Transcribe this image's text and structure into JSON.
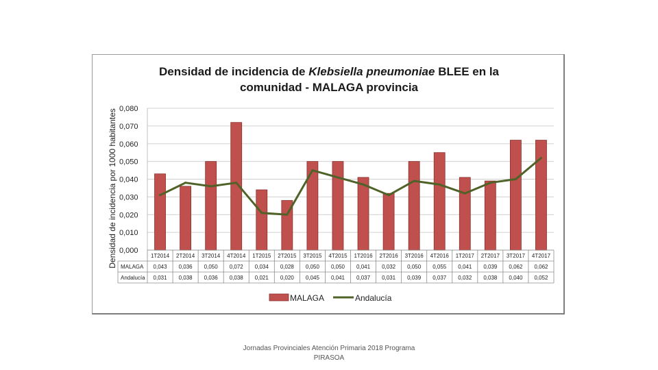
{
  "chart_data": {
    "type": "bar",
    "title_parts": [
      {
        "text": "Densidad de incidencia de ",
        "italic": false
      },
      {
        "text": "Klebsiella pneumoniae",
        "italic": true
      },
      {
        "text": " BLEE en la",
        "italic": false
      }
    ],
    "title_line2": "comunidad - MALAGA provincia",
    "ylabel": "Densidad de incidencia por 1000 habitantes",
    "ylim": [
      0,
      0.08
    ],
    "yticks": [
      "0,000",
      "0,010",
      "0,020",
      "0,030",
      "0,040",
      "0,050",
      "0,060",
      "0,070",
      "0,080"
    ],
    "categories": [
      "1T2014",
      "2T2014",
      "3T2014",
      "4T2014",
      "1T2015",
      "2T2015",
      "3T2015",
      "4T2015",
      "1T2016",
      "2T2016",
      "3T2016",
      "4T2016",
      "1T2017",
      "2T2017",
      "3T2017",
      "4T2017"
    ],
    "series": [
      {
        "name": "MALAGA",
        "kind": "bar",
        "color": "#c0504d",
        "edge": "#8b2f2c",
        "values": [
          0.043,
          0.036,
          0.05,
          0.072,
          0.034,
          0.028,
          0.05,
          0.05,
          0.041,
          0.032,
          0.05,
          0.055,
          0.041,
          0.039,
          0.062,
          0.062
        ],
        "labels": [
          "0,043",
          "0,036",
          "0,050",
          "0,072",
          "0,034",
          "0,028",
          "0,050",
          "0,050",
          "0,041",
          "0,032",
          "0,050",
          "0,055",
          "0,041",
          "0,039",
          "0,062",
          "0,062"
        ]
      },
      {
        "name": "Andalucía",
        "kind": "line",
        "color": "#4f6228",
        "values": [
          0.031,
          0.038,
          0.036,
          0.038,
          0.021,
          0.02,
          0.045,
          0.041,
          0.037,
          0.031,
          0.039,
          0.037,
          0.032,
          0.038,
          0.04,
          0.052
        ],
        "labels": [
          "0,031",
          "0,038",
          "0,036",
          "0,038",
          "0,021",
          "0,020",
          "0,045",
          "0,041",
          "0,037",
          "0,031",
          "0,039",
          "0,037",
          "0,032",
          "0,038",
          "0,040",
          "0,052"
        ]
      }
    ],
    "grid": true,
    "legend": "bottom"
  },
  "footer": {
    "line1": "Jornadas Provinciales Atención Primaria 2018 Programa",
    "line2": "PIRASOA"
  }
}
